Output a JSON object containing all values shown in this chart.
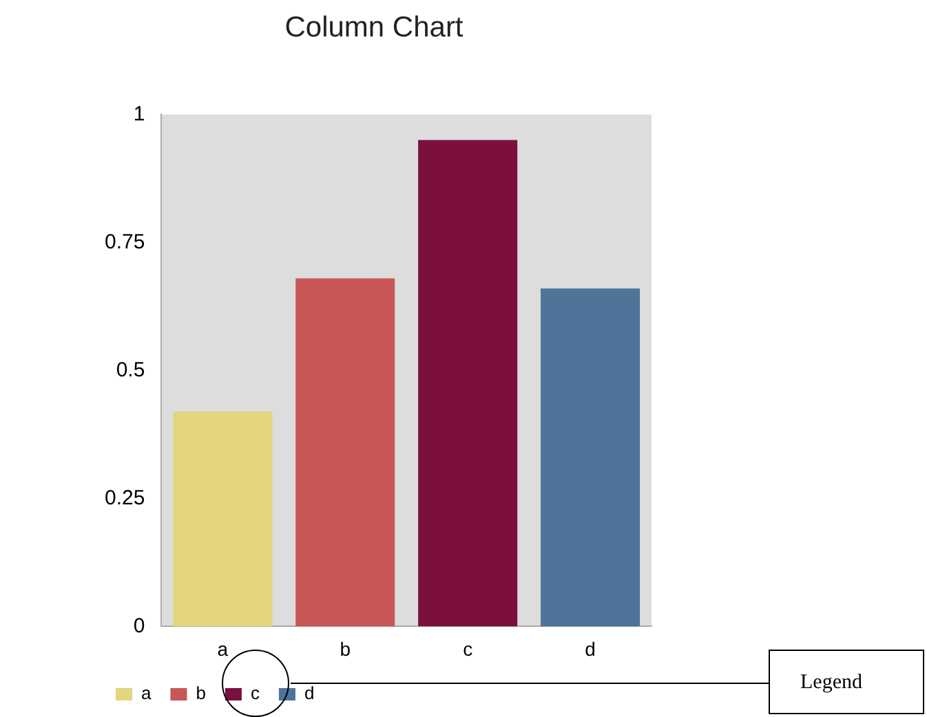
{
  "chart_data": {
    "type": "bar",
    "title": "Column Chart",
    "categories": [
      "a",
      "b",
      "c",
      "d"
    ],
    "series": [
      {
        "name": "a",
        "color": "#e2d57e",
        "values": [
          0.42,
          null,
          null,
          null
        ]
      },
      {
        "name": "b",
        "color": "#c85656",
        "values": [
          null,
          0.68,
          null,
          null
        ]
      },
      {
        "name": "c",
        "color": "#7b103e",
        "values": [
          null,
          null,
          0.95,
          null
        ]
      },
      {
        "name": "d",
        "color": "#4e7499",
        "values": [
          null,
          null,
          null,
          0.66
        ]
      }
    ],
    "ylim": [
      0,
      1
    ],
    "yticks": [
      0,
      0.25,
      0.5,
      0.75,
      1
    ],
    "grid": false,
    "legend": "bottom left",
    "annotations": [
      "Legend"
    ]
  }
}
